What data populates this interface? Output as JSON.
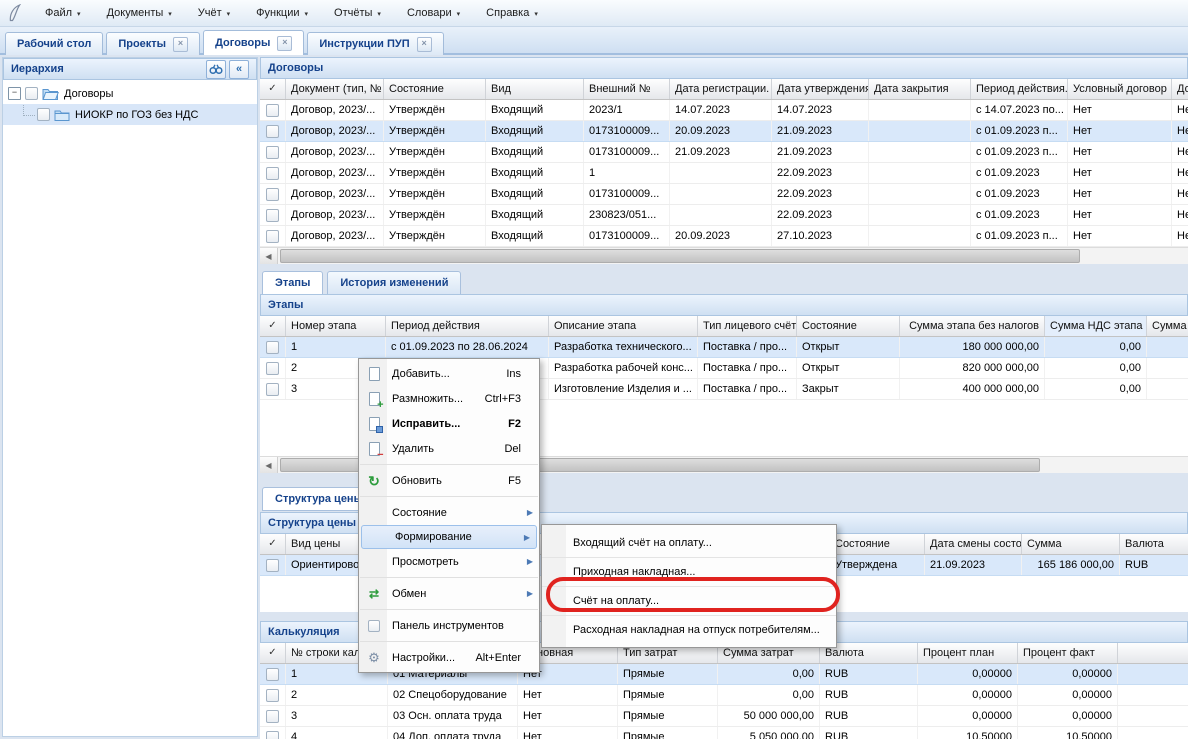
{
  "ui": {
    "check_mark": "✓",
    "scroll_left_arrow": "◀",
    "collapse_glyph": "«",
    "menu_arrow": "▶",
    "close_glyph": "×",
    "dropdown_arrow": "▾",
    "expander_glyph": "−",
    "accent_color": "#15428b",
    "selection_color": "#d9e8fa",
    "annotation_color": "#e0231f"
  },
  "menubar": {
    "items": [
      "Файл",
      "Документы",
      "Учёт",
      "Функции",
      "Отчёты",
      "Словари",
      "Справка"
    ]
  },
  "tabs": [
    {
      "label": "Рабочий стол",
      "closable": false,
      "active": false
    },
    {
      "label": "Проекты",
      "closable": true,
      "active": false
    },
    {
      "label": "Договоры",
      "closable": true,
      "active": true
    },
    {
      "label": "Инструкции ПУП",
      "closable": true,
      "active": false
    }
  ],
  "sidebar": {
    "title": "Иерархия",
    "nodes": [
      {
        "label": "Договоры",
        "level": 0,
        "expanded": true,
        "selected": false
      },
      {
        "label": "НИОКР по ГОЗ без НДС",
        "level": 1,
        "selected": true
      }
    ]
  },
  "contracts": {
    "title": "Договоры",
    "columns": [
      "Документ (тип, №",
      "Состояние",
      "Вид",
      "Внешний №",
      "Дата регистрации.",
      "Дата утверждения",
      "Дата закрытия",
      "Период действия..",
      "Условный договор",
      "Договор"
    ],
    "rows": [
      [
        "Договор, 2023/...",
        "Утверждён",
        "Входящий",
        "2023/1",
        "14.07.2023",
        "14.07.2023",
        "",
        "с 14.07.2023 по...",
        "Нет",
        "Нет"
      ],
      [
        "Договор, 2023/...",
        "Утверждён",
        "Входящий",
        "0173100009...",
        "20.09.2023",
        "21.09.2023",
        "",
        "с 01.09.2023 п...",
        "Нет",
        "Нет"
      ],
      [
        "Договор, 2023/...",
        "Утверждён",
        "Входящий",
        "0173100009...",
        "21.09.2023",
        "21.09.2023",
        "",
        "с 01.09.2023 п...",
        "Нет",
        "Нет"
      ],
      [
        "Договор, 2023/...",
        "Утверждён",
        "Входящий",
        "1",
        "",
        "22.09.2023",
        "",
        "с 01.09.2023",
        "Нет",
        "Нет"
      ],
      [
        "Договор, 2023/...",
        "Утверждён",
        "Входящий",
        "0173100009...",
        "",
        "22.09.2023",
        "",
        "с 01.09.2023",
        "Нет",
        "Нет"
      ],
      [
        "Договор, 2023/...",
        "Утверждён",
        "Входящий",
        "230823/051...",
        "",
        "22.09.2023",
        "",
        "с 01.09.2023",
        "Нет",
        "Нет"
      ],
      [
        "Договор, 2023/...",
        "Утверждён",
        "Входящий",
        "0173100009...",
        "20.09.2023",
        "27.10.2023",
        "",
        "с 01.09.2023 п...",
        "Нет",
        "Нет"
      ]
    ],
    "selected_row": 1
  },
  "stages_tabs": [
    {
      "label": "Этапы",
      "active": true
    },
    {
      "label": "История изменений",
      "active": false
    }
  ],
  "stages": {
    "title": "Этапы",
    "columns": [
      "Номер этапа",
      "Период действия",
      "Описание этапа",
      "Тип лицевого счёт",
      "Состояние",
      "Сумма этапа без налогов",
      "Сумма НДС этапа",
      "Сумма этапа"
    ],
    "rows": [
      [
        "1",
        "с 01.09.2023 по 28.06.2024",
        "Разработка технического...",
        "Поставка / про...",
        "Открыт",
        "180 000 000,00",
        "0,00",
        ""
      ],
      [
        "2",
        "",
        "Разработка рабочей конс...",
        "Поставка / про...",
        "Открыт",
        "820 000 000,00",
        "0,00",
        ""
      ],
      [
        "3",
        "",
        "Изготовление Изделия и ...",
        "Поставка / про...",
        "Закрыт",
        "400 000 000,00",
        "0,00",
        ""
      ]
    ],
    "selected_row": 0
  },
  "price": {
    "tab_label": "Структура цены",
    "title": "Структура цены",
    "columns": [
      "Вид цены",
      "Состояние",
      "Дата смены состоя",
      "Сумма",
      "Валюта"
    ],
    "rows": [
      [
        "Ориентировочная",
        "Утверждена",
        "21.09.2023",
        "165 186 000,00",
        "RUB"
      ]
    ],
    "selected_row": 0
  },
  "calc": {
    "title": "Калькуляция",
    "columns": [
      "№ строки кальк",
      "",
      "Основная",
      "Тип затрат",
      "Сумма затрат",
      "Валюта",
      "Процент план",
      "Процент факт"
    ],
    "rows": [
      [
        "1",
        "01 Материалы",
        "Нет",
        "Прямые",
        "0,00",
        "RUB",
        "0,00000",
        "0,00000"
      ],
      [
        "2",
        "02 Спецоборудование",
        "Нет",
        "Прямые",
        "0,00",
        "RUB",
        "0,00000",
        "0,00000"
      ],
      [
        "3",
        "03 Осн. оплата труда",
        "Нет",
        "Прямые",
        "50 000 000,00",
        "RUB",
        "0,00000",
        "0,00000"
      ],
      [
        "4",
        "04 Доп. оплата труда",
        "Нет",
        "Прямые",
        "5 050 000,00",
        "RUB",
        "10,50000",
        "10,50000"
      ]
    ],
    "selected_row": 0
  },
  "context_menu": {
    "items": [
      {
        "label": "Добавить...",
        "shortcut": "Ins",
        "icon": "page-new-icon"
      },
      {
        "label": "Размножить...",
        "shortcut": "Ctrl+F3",
        "icon": "page-copy-icon"
      },
      {
        "label": "Исправить...",
        "shortcut": "F2",
        "icon": "page-edit-icon",
        "bold": true
      },
      {
        "label": "Удалить",
        "shortcut": "Del",
        "icon": "page-delete-icon"
      },
      {
        "separator": true
      },
      {
        "label": "Обновить",
        "shortcut": "F5",
        "icon": "refresh-icon"
      },
      {
        "separator": true
      },
      {
        "label": "Состояние",
        "submenu": true
      },
      {
        "label": "Формирование",
        "submenu": true,
        "highlighted": true
      },
      {
        "label": "Просмотреть",
        "submenu": true
      },
      {
        "separator": true
      },
      {
        "label": "Обмен",
        "submenu": true,
        "icon": "exchange-icon"
      },
      {
        "separator": true
      },
      {
        "label": "Панель инструментов",
        "icon": "toolbar-checkbox-icon"
      },
      {
        "separator": true
      },
      {
        "label": "Настройки...",
        "shortcut": "Alt+Enter",
        "icon": "settings-icon"
      }
    ]
  },
  "submenu": {
    "items": [
      {
        "label": "Входящий счёт на оплату..."
      },
      {
        "label": "Приходная накладная..."
      },
      {
        "label": "Счёт на оплату...",
        "annotated": true
      },
      {
        "label": "Расходная накладная на отпуск потребителям..."
      }
    ]
  }
}
